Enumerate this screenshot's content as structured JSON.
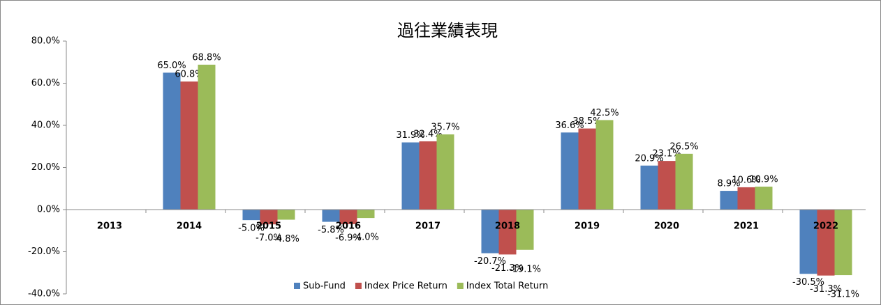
{
  "chart_data": {
    "type": "bar",
    "title": "過往業績表現",
    "categories": [
      "2013",
      "2014",
      "2015",
      "2016",
      "2017",
      "2018",
      "2019",
      "2020",
      "2021",
      "2022"
    ],
    "series": [
      {
        "name": "Sub-Fund",
        "color": "#4f81bd",
        "values": [
          null,
          65.0,
          -5.0,
          -5.8,
          31.9,
          -20.7,
          36.6,
          20.9,
          8.9,
          -30.5
        ],
        "value_labels": [
          null,
          "65.0%",
          "-5.0%",
          "-5.8%",
          "31.9%",
          "-20.7%",
          "36.6%",
          "20.9%",
          "8.9%",
          "-30.5%"
        ]
      },
      {
        "name": "Index Price Return",
        "color": "#c0504d",
        "values": [
          null,
          60.8,
          -7.0,
          -6.9,
          32.4,
          -21.3,
          38.5,
          23.1,
          10.6,
          -31.3
        ],
        "value_labels": [
          null,
          "60.8%",
          "-7.0%",
          "-6.9%",
          "32.4%",
          "-21.3%",
          "38.5%",
          "23.1%",
          "10.6%",
          "-31.3%"
        ]
      },
      {
        "name": "Index Total Return",
        "color": "#9bbb59",
        "values": [
          null,
          68.8,
          -4.8,
          -4.0,
          35.7,
          -19.1,
          42.5,
          26.5,
          10.9,
          -31.1
        ],
        "value_labels": [
          null,
          "68.8%",
          "-4.8%",
          "-4.0%",
          "35.7%",
          "-19.1%",
          "42.5%",
          "26.5%",
          "10.9%",
          "-31.1%"
        ]
      }
    ],
    "ylim": [
      -40,
      80
    ],
    "yticks": [
      {
        "value": -40,
        "label": "-40.0%"
      },
      {
        "value": -20,
        "label": "-20.0%"
      },
      {
        "value": 0,
        "label": "0.0%"
      },
      {
        "value": 20,
        "label": "20.0%"
      },
      {
        "value": 40,
        "label": "40.0%"
      },
      {
        "value": 60,
        "label": "60.0%"
      },
      {
        "value": 80,
        "label": "80.0%"
      }
    ],
    "legend": "bottom"
  }
}
